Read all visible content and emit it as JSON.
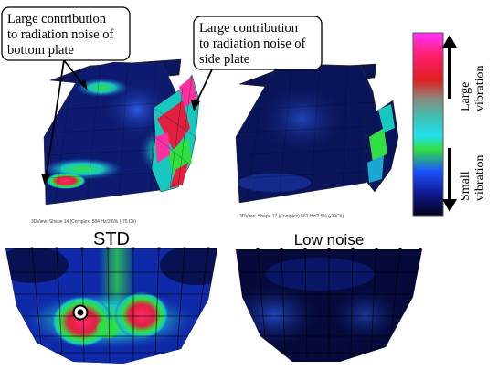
{
  "callouts": {
    "bottom_plate": [
      "Large contribution",
      "to radiation noise of",
      "bottom plate"
    ],
    "side_plate": [
      "Large contribution",
      "to radiation noise of",
      "side plate"
    ]
  },
  "scale": {
    "top_label": "Large vibration",
    "top_lines": [
      "Large",
      "vibration"
    ],
    "bottom_label": "Small vibration",
    "bottom_lines": [
      "Small",
      "vibration"
    ]
  },
  "captions": {
    "left": "3DView: Shape 14 [Complex] 584 Hz/2.6% (-75.Ch)",
    "right": "3DView: Shape 17 (Complex) 562 Hz/2.5% (-99Ch)"
  },
  "panels": {
    "std_title": "STD",
    "low_noise_title": "Low noise"
  },
  "colors": {
    "deep": "#06082e",
    "navy": "#101c78",
    "blue": "#1e46c8",
    "cyan": "#18d8d0",
    "green": "#30e040",
    "red": "#e02040",
    "magenta": "#ff30a0"
  }
}
